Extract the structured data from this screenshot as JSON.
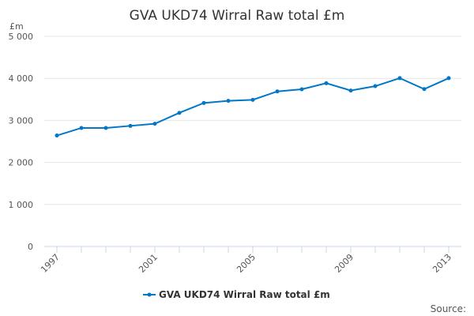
{
  "chart_data": {
    "type": "line",
    "title": "GVA UKD74 Wirral Raw total £m",
    "ylabel": "£m",
    "xlabel": "",
    "x": [
      1997,
      1998,
      1999,
      2000,
      2001,
      2002,
      2003,
      2004,
      2005,
      2006,
      2007,
      2008,
      2009,
      2010,
      2011,
      2012,
      2013
    ],
    "series": [
      {
        "name": "GVA UKD74 Wirral Raw total £m",
        "values": [
          2640,
          2820,
          2820,
          2870,
          2920,
          3180,
          3415,
          3465,
          3490,
          3690,
          3740,
          3885,
          3710,
          3815,
          4005,
          3745,
          4005
        ]
      }
    ],
    "ylim": [
      0,
      5000
    ],
    "yticks": [
      0,
      1000,
      2000,
      3000,
      4000,
      5000
    ],
    "ytick_labels": [
      "0",
      "1 000",
      "2 000",
      "3 000",
      "4 000",
      "5 000"
    ],
    "xtick_labels": [
      "1997",
      "2001",
      "2005",
      "2009",
      "2013"
    ],
    "grid": true,
    "legend": "bottom",
    "line_color": "#0077c8",
    "source_label": "Source:"
  }
}
